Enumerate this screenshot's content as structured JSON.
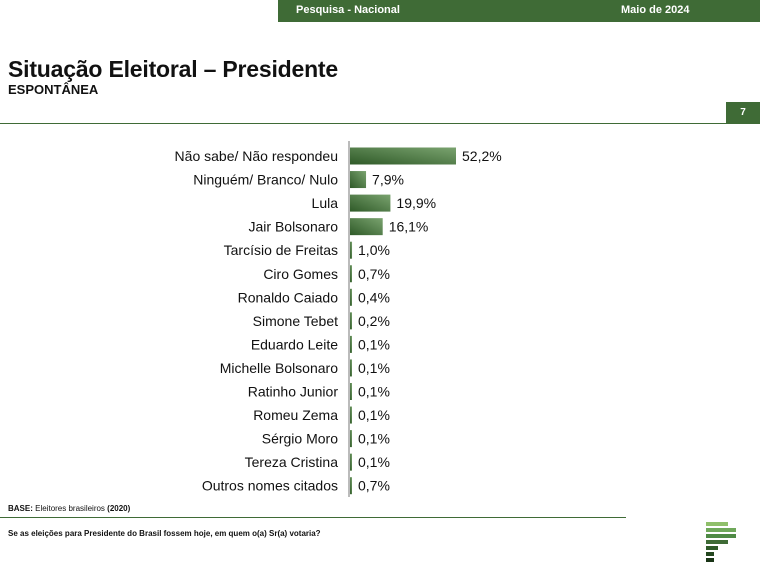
{
  "header": {
    "left_text": "Pesquisa - Nacional",
    "right_text": "Maio de 2024"
  },
  "page": {
    "title": "Situação Eleitoral – Presidente",
    "subtitle": "ESPONTÂNEA",
    "page_number": "7"
  },
  "footer": {
    "base_label": "BASE:",
    "base_text": "Eleitores brasileiros",
    "base_count": "(2020)",
    "question": "Se as eleições para Presidente do Brasil fossem hoje, em quem o(a) Sr(a) votaria?"
  },
  "colors": {
    "brand_green": "#3f6b36",
    "bar_dark": "#2f5a28",
    "bar_light": "#7aa36f"
  },
  "chart_data": {
    "type": "bar",
    "orientation": "horizontal",
    "categories": [
      "Não sabe/ Não respondeu",
      "Ninguém/ Branco/ Nulo",
      "Lula",
      "Jair Bolsonaro",
      "Tarcísio de Freitas",
      "Ciro Gomes",
      "Ronaldo Caiado",
      "Simone Tebet",
      "Eduardo Leite",
      "Michelle Bolsonaro",
      "Ratinho Junior",
      "Romeu Zema",
      "Sérgio Moro",
      "Tereza Cristina",
      "Outros nomes citados"
    ],
    "values": [
      52.2,
      7.9,
      19.9,
      16.1,
      1.0,
      0.7,
      0.4,
      0.2,
      0.1,
      0.1,
      0.1,
      0.1,
      0.1,
      0.1,
      0.7
    ],
    "value_labels": [
      "52,2%",
      "7,9%",
      "19,9%",
      "16,1%",
      "1,0%",
      "0,7%",
      "0,4%",
      "0,2%",
      "0,1%",
      "0,1%",
      "0,1%",
      "0,1%",
      "0,1%",
      "0,1%",
      "0,7%"
    ],
    "xlim": [
      0,
      60
    ],
    "grid": false,
    "legend": "none"
  }
}
